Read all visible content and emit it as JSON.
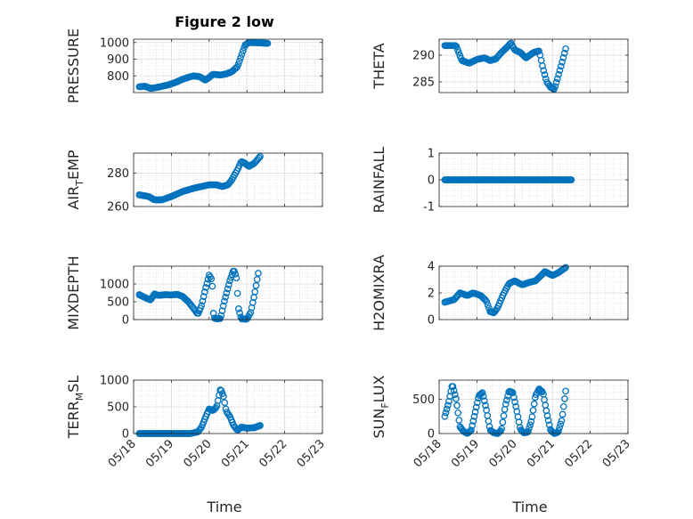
{
  "figure": {
    "title": "Figure 2 low",
    "xlabel": "Time"
  },
  "chart_data": [
    {
      "type": "scatter",
      "panel": "pressure",
      "ylabel": "PRESSURE",
      "xlim": [
        0,
        5
      ],
      "ylim": [
        700,
        1020
      ],
      "yticks": [
        800,
        900,
        1000
      ],
      "xticks": [
        0,
        1,
        2,
        3,
        4,
        5
      ],
      "xtick_labels": [
        "05/18",
        "05/19",
        "05/20",
        "05/21",
        "05/22",
        "05/23"
      ],
      "grid": true,
      "color": "#0072BD",
      "keypoints": [
        [
          0.15,
          735
        ],
        [
          0.3,
          738
        ],
        [
          0.45,
          725
        ],
        [
          0.55,
          728
        ],
        [
          0.7,
          735
        ],
        [
          0.9,
          745
        ],
        [
          1.1,
          760
        ],
        [
          1.3,
          780
        ],
        [
          1.5,
          795
        ],
        [
          1.6,
          800
        ],
        [
          1.75,
          795
        ],
        [
          1.9,
          775
        ],
        [
          2.0,
          790
        ],
        [
          2.1,
          810
        ],
        [
          2.3,
          805
        ],
        [
          2.45,
          812
        ],
        [
          2.6,
          825
        ],
        [
          2.75,
          855
        ],
        [
          2.85,
          920
        ],
        [
          2.95,
          985
        ],
        [
          3.05,
          1000
        ],
        [
          3.3,
          998
        ],
        [
          3.55,
          995
        ]
      ],
      "npoints": 110
    },
    {
      "type": "scatter",
      "panel": "theta",
      "ylabel": "THETA",
      "xlim": [
        0,
        5
      ],
      "ylim": [
        283,
        293
      ],
      "yticks": [
        285,
        290
      ],
      "xticks": [
        0,
        1,
        2,
        3,
        4,
        5
      ],
      "xtick_labels": [
        "05/18",
        "05/19",
        "05/20",
        "05/21",
        "05/22",
        "05/23"
      ],
      "grid": true,
      "color": "#0072BD",
      "keypoints": [
        [
          0.15,
          291.8
        ],
        [
          0.45,
          291.8
        ],
        [
          0.6,
          289.0
        ],
        [
          0.8,
          288.5
        ],
        [
          1.0,
          289.2
        ],
        [
          1.2,
          289.5
        ],
        [
          1.35,
          289.0
        ],
        [
          1.5,
          289.3
        ],
        [
          1.65,
          290.5
        ],
        [
          1.8,
          291.5
        ],
        [
          1.9,
          292.3
        ],
        [
          2.0,
          291.0
        ],
        [
          2.15,
          290.5
        ],
        [
          2.3,
          289.5
        ],
        [
          2.5,
          290.5
        ],
        [
          2.65,
          290.8
        ],
        [
          2.75,
          287.5
        ],
        [
          2.85,
          285.0
        ],
        [
          2.95,
          284.0
        ],
        [
          3.05,
          283.6
        ],
        [
          3.15,
          286.0
        ],
        [
          3.25,
          288.5
        ],
        [
          3.35,
          291.2
        ]
      ],
      "npoints": 105
    },
    {
      "type": "scatter",
      "panel": "air_temp",
      "ylabel": "AIR_TEMP",
      "xlim": [
        0,
        5
      ],
      "ylim": [
        260,
        292
      ],
      "yticks": [
        260,
        280
      ],
      "xticks": [
        0,
        1,
        2,
        3,
        4,
        5
      ],
      "xtick_labels": [
        "05/18",
        "05/19",
        "05/20",
        "05/21",
        "05/22",
        "05/23"
      ],
      "grid": true,
      "color": "#0072BD",
      "keypoints": [
        [
          0.15,
          267
        ],
        [
          0.4,
          266
        ],
        [
          0.55,
          264
        ],
        [
          0.75,
          264
        ],
        [
          1.0,
          266
        ],
        [
          1.3,
          269
        ],
        [
          1.6,
          271
        ],
        [
          1.8,
          272
        ],
        [
          2.0,
          273
        ],
        [
          2.2,
          273
        ],
        [
          2.35,
          272
        ],
        [
          2.5,
          273
        ],
        [
          2.6,
          276
        ],
        [
          2.75,
          282
        ],
        [
          2.85,
          287
        ],
        [
          2.95,
          286
        ],
        [
          3.05,
          284
        ],
        [
          3.2,
          286
        ],
        [
          3.35,
          290
        ]
      ],
      "npoints": 100
    },
    {
      "type": "scatter",
      "panel": "rainfall",
      "ylabel": "RAINFALL",
      "xlim": [
        0,
        5
      ],
      "ylim": [
        -1,
        1
      ],
      "yticks": [
        -1,
        0,
        1
      ],
      "xticks": [
        0,
        1,
        2,
        3,
        4,
        5
      ],
      "xtick_labels": [
        "05/18",
        "05/19",
        "05/20",
        "05/21",
        "05/22",
        "05/23"
      ],
      "grid": true,
      "color": "#0072BD",
      "keypoints": [
        [
          0.15,
          0
        ],
        [
          3.5,
          0
        ]
      ],
      "npoints": 120
    },
    {
      "type": "scatter",
      "panel": "mixdepth",
      "ylabel": "MIXDEPTH",
      "xlim": [
        0,
        5
      ],
      "ylim": [
        0,
        1500
      ],
      "yticks": [
        0,
        500,
        1000
      ],
      "xticks": [
        0,
        1,
        2,
        3,
        4,
        5
      ],
      "xtick_labels": [
        "05/18",
        "05/19",
        "05/20",
        "05/21",
        "05/22",
        "05/23"
      ],
      "grid": true,
      "color": "#0072BD",
      "keypoints": [
        [
          0.15,
          700
        ],
        [
          0.3,
          620
        ],
        [
          0.45,
          550
        ],
        [
          0.55,
          720
        ],
        [
          0.65,
          680
        ],
        [
          0.85,
          700
        ],
        [
          1.0,
          690
        ],
        [
          1.15,
          710
        ],
        [
          1.3,
          650
        ],
        [
          1.45,
          500
        ],
        [
          1.6,
          300
        ],
        [
          1.7,
          150
        ],
        [
          1.8,
          400
        ],
        [
          1.9,
          850
        ],
        [
          2.0,
          1250
        ],
        [
          2.08,
          1100
        ],
        [
          2.12,
          50
        ],
        [
          2.2,
          20
        ],
        [
          2.3,
          30
        ],
        [
          2.4,
          500
        ],
        [
          2.55,
          1100
        ],
        [
          2.65,
          1400
        ],
        [
          2.72,
          1200
        ],
        [
          2.78,
          300
        ],
        [
          2.85,
          20
        ],
        [
          3.0,
          10
        ],
        [
          3.1,
          200
        ],
        [
          3.2,
          700
        ],
        [
          3.3,
          1300
        ]
      ],
      "npoints": 110
    },
    {
      "type": "scatter",
      "panel": "h2omixra",
      "ylabel": "H2OMIXRA",
      "xlim": [
        0,
        5
      ],
      "ylim": [
        0,
        4
      ],
      "yticks": [
        0,
        2,
        4
      ],
      "xticks": [
        0,
        1,
        2,
        3,
        4,
        5
      ],
      "xtick_labels": [
        "05/18",
        "05/19",
        "05/20",
        "05/21",
        "05/22",
        "05/23"
      ],
      "grid": true,
      "color": "#0072BD",
      "keypoints": [
        [
          0.15,
          1.3
        ],
        [
          0.4,
          1.5
        ],
        [
          0.55,
          2.0
        ],
        [
          0.75,
          1.8
        ],
        [
          0.9,
          2.0
        ],
        [
          1.1,
          1.8
        ],
        [
          1.25,
          1.4
        ],
        [
          1.35,
          0.6
        ],
        [
          1.45,
          0.5
        ],
        [
          1.55,
          0.9
        ],
        [
          1.7,
          1.9
        ],
        [
          1.85,
          2.7
        ],
        [
          2.0,
          2.9
        ],
        [
          2.2,
          2.6
        ],
        [
          2.4,
          2.8
        ],
        [
          2.55,
          2.9
        ],
        [
          2.7,
          3.3
        ],
        [
          2.8,
          3.6
        ],
        [
          3.0,
          3.3
        ],
        [
          3.15,
          3.5
        ],
        [
          3.35,
          3.9
        ]
      ],
      "npoints": 105
    },
    {
      "type": "scatter",
      "panel": "terr_msl",
      "ylabel": "TERR_MSL",
      "xlim": [
        0,
        5
      ],
      "ylim": [
        0,
        1000
      ],
      "yticks": [
        0,
        500,
        1000
      ],
      "xticks": [
        0,
        1,
        2,
        3,
        4,
        5
      ],
      "xtick_labels": [
        "05/18",
        "05/19",
        "05/20",
        "05/21",
        "05/22",
        "05/23"
      ],
      "grid": true,
      "color": "#0072BD",
      "keypoints": [
        [
          0.15,
          0
        ],
        [
          1.5,
          0
        ],
        [
          1.7,
          30
        ],
        [
          1.8,
          120
        ],
        [
          1.9,
          300
        ],
        [
          2.0,
          460
        ],
        [
          2.1,
          430
        ],
        [
          2.2,
          500
        ],
        [
          2.3,
          840
        ],
        [
          2.38,
          700
        ],
        [
          2.45,
          420
        ],
        [
          2.55,
          320
        ],
        [
          2.65,
          150
        ],
        [
          2.75,
          60
        ],
        [
          2.85,
          120
        ],
        [
          3.0,
          100
        ],
        [
          3.2,
          110
        ],
        [
          3.35,
          150
        ]
      ],
      "npoints": 110
    },
    {
      "type": "scatter",
      "panel": "sun_flux",
      "ylabel": "SUN_FLUX",
      "xlim": [
        0,
        5
      ],
      "ylim": [
        0,
        780
      ],
      "yticks": [
        0,
        500
      ],
      "xticks": [
        0,
        1,
        2,
        3,
        4,
        5
      ],
      "xtick_labels": [
        "05/18",
        "05/19",
        "05/20",
        "05/21",
        "05/22",
        "05/23"
      ],
      "grid": true,
      "color": "#0072BD",
      "keypoints": [
        [
          0.15,
          250
        ],
        [
          0.25,
          450
        ],
        [
          0.35,
          720
        ],
        [
          0.45,
          500
        ],
        [
          0.55,
          100
        ],
        [
          0.65,
          30
        ],
        [
          0.75,
          0
        ],
        [
          0.85,
          50
        ],
        [
          0.95,
          300
        ],
        [
          1.05,
          550
        ],
        [
          1.15,
          600
        ],
        [
          1.25,
          350
        ],
        [
          1.35,
          50
        ],
        [
          1.45,
          10
        ],
        [
          1.55,
          0
        ],
        [
          1.65,
          50
        ],
        [
          1.75,
          400
        ],
        [
          1.85,
          620
        ],
        [
          1.95,
          600
        ],
        [
          2.05,
          350
        ],
        [
          2.15,
          60
        ],
        [
          2.25,
          10
        ],
        [
          2.35,
          20
        ],
        [
          2.45,
          200
        ],
        [
          2.55,
          550
        ],
        [
          2.65,
          650
        ],
        [
          2.75,
          600
        ],
        [
          2.85,
          300
        ],
        [
          2.95,
          50
        ],
        [
          3.05,
          0
        ],
        [
          3.15,
          20
        ],
        [
          3.25,
          200
        ],
        [
          3.35,
          620
        ]
      ],
      "npoints": 120
    }
  ]
}
